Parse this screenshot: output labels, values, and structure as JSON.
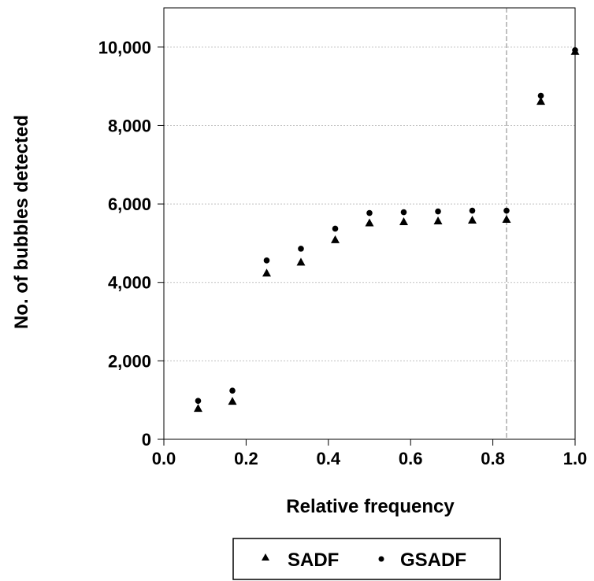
{
  "chart_data": {
    "type": "scatter",
    "xlabel": "Relative frequency",
    "ylabel": "No. of bubbles detected",
    "xlim": [
      0.0,
      1.0
    ],
    "ylim": [
      0,
      11000
    ],
    "xticks": [
      0.0,
      0.2,
      0.4,
      0.6,
      0.8,
      1.0
    ],
    "xtick_labels": [
      "0.0",
      "0.2",
      "0.4",
      "0.6",
      "0.8",
      "1.0"
    ],
    "yticks": [
      0,
      2000,
      4000,
      6000,
      8000,
      10000
    ],
    "ytick_labels": [
      "0",
      "2,000",
      "4,000",
      "6,000",
      "8,000",
      "10,000"
    ],
    "grid": "horizontal dotted",
    "reference_line_x": 0.8333,
    "legend_position": "bottom",
    "series": [
      {
        "name": "SADF",
        "marker": "triangle",
        "x": [
          0.0833,
          0.1667,
          0.25,
          0.3333,
          0.4167,
          0.5,
          0.5833,
          0.6667,
          0.75,
          0.8333,
          0.9167,
          1.0
        ],
        "y": [
          800,
          980,
          4250,
          4530,
          5100,
          5530,
          5560,
          5580,
          5600,
          5620,
          8630,
          9900
        ]
      },
      {
        "name": "GSADF",
        "marker": "circle",
        "x": [
          0.0833,
          0.1667,
          0.25,
          0.3333,
          0.4167,
          0.5,
          0.5833,
          0.6667,
          0.75,
          0.8333,
          0.9167,
          1.0
        ],
        "y": [
          980,
          1240,
          4560,
          4860,
          5370,
          5770,
          5790,
          5810,
          5830,
          5830,
          8760,
          9920
        ]
      }
    ],
    "colors": {
      "marker": "#000000",
      "grid": "#c0c0c0",
      "reference_line": "#808080"
    }
  }
}
